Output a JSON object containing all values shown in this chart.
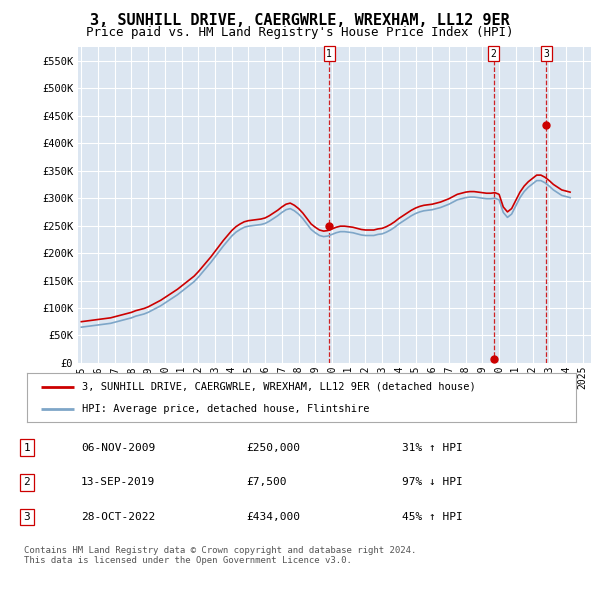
{
  "title": "3, SUNHILL DRIVE, CAERGWRLE, WREXHAM, LL12 9ER",
  "subtitle": "Price paid vs. HM Land Registry's House Price Index (HPI)",
  "title_fontsize": 11,
  "subtitle_fontsize": 9,
  "background_color": "#ffffff",
  "plot_bg_color": "#dce6f1",
  "grid_color": "#ffffff",
  "ylim": [
    0,
    575000
  ],
  "yticks": [
    0,
    50000,
    100000,
    150000,
    200000,
    250000,
    300000,
    350000,
    400000,
    450000,
    500000,
    550000
  ],
  "ytick_labels": [
    "£0",
    "£50K",
    "£100K",
    "£150K",
    "£200K",
    "£250K",
    "£300K",
    "£350K",
    "£400K",
    "£450K",
    "£500K",
    "£550K"
  ],
  "dates": [
    1995.0,
    1995.25,
    1995.5,
    1995.75,
    1996.0,
    1996.25,
    1996.5,
    1996.75,
    1997.0,
    1997.25,
    1997.5,
    1997.75,
    1998.0,
    1998.25,
    1998.5,
    1998.75,
    1999.0,
    1999.25,
    1999.5,
    1999.75,
    2000.0,
    2000.25,
    2000.5,
    2000.75,
    2001.0,
    2001.25,
    2001.5,
    2001.75,
    2002.0,
    2002.25,
    2002.5,
    2002.75,
    2003.0,
    2003.25,
    2003.5,
    2003.75,
    2004.0,
    2004.25,
    2004.5,
    2004.75,
    2005.0,
    2005.25,
    2005.5,
    2005.75,
    2006.0,
    2006.25,
    2006.5,
    2006.75,
    2007.0,
    2007.25,
    2007.5,
    2007.75,
    2008.0,
    2008.25,
    2008.5,
    2008.75,
    2009.0,
    2009.25,
    2009.5,
    2009.75,
    2010.0,
    2010.25,
    2010.5,
    2010.75,
    2011.0,
    2011.25,
    2011.5,
    2011.75,
    2012.0,
    2012.25,
    2012.5,
    2012.75,
    2013.0,
    2013.25,
    2013.5,
    2013.75,
    2014.0,
    2014.25,
    2014.5,
    2014.75,
    2015.0,
    2015.25,
    2015.5,
    2015.75,
    2016.0,
    2016.25,
    2016.5,
    2016.75,
    2017.0,
    2017.25,
    2017.5,
    2017.75,
    2018.0,
    2018.25,
    2018.5,
    2018.75,
    2019.0,
    2019.25,
    2019.5,
    2019.75,
    2020.0,
    2020.25,
    2020.5,
    2020.75,
    2021.0,
    2021.25,
    2021.5,
    2021.75,
    2022.0,
    2022.25,
    2022.5,
    2022.75,
    2023.0,
    2023.25,
    2023.5,
    2023.75,
    2024.0,
    2024.25
  ],
  "hpi_values": [
    65000,
    66000,
    67000,
    68000,
    69000,
    70000,
    71000,
    72000,
    74000,
    76000,
    78000,
    80000,
    82000,
    85000,
    87000,
    89000,
    92000,
    96000,
    100000,
    104000,
    109000,
    114000,
    119000,
    124000,
    130000,
    136000,
    142000,
    148000,
    156000,
    165000,
    174000,
    183000,
    193000,
    203000,
    213000,
    222000,
    231000,
    238000,
    243000,
    247000,
    249000,
    250000,
    251000,
    252000,
    254000,
    258000,
    263000,
    268000,
    274000,
    279000,
    281000,
    277000,
    271000,
    263000,
    253000,
    243000,
    237000,
    232000,
    230000,
    231000,
    234000,
    237000,
    239000,
    239000,
    238000,
    237000,
    235000,
    233000,
    232000,
    232000,
    232000,
    234000,
    235000,
    238000,
    242000,
    247000,
    253000,
    258000,
    263000,
    268000,
    272000,
    275000,
    277000,
    278000,
    279000,
    281000,
    283000,
    286000,
    289000,
    293000,
    297000,
    299000,
    301000,
    302000,
    302000,
    301000,
    300000,
    299000,
    299000,
    300000,
    297000,
    274000,
    265000,
    271000,
    286000,
    301000,
    312000,
    320000,
    326000,
    332000,
    332000,
    328000,
    322000,
    315000,
    310000,
    305000,
    303000,
    301000,
    299000,
    298000
  ],
  "red_values": [
    75000,
    76000,
    77000,
    78000,
    79000,
    80000,
    81000,
    82000,
    84000,
    86000,
    88000,
    90000,
    92000,
    95000,
    97000,
    99000,
    102000,
    106000,
    110000,
    114000,
    119000,
    124000,
    129000,
    134000,
    140000,
    146000,
    152000,
    158000,
    166000,
    175000,
    184000,
    193000,
    203000,
    213000,
    223000,
    232000,
    241000,
    248000,
    253000,
    257000,
    259000,
    260000,
    261000,
    262000,
    264000,
    268000,
    273000,
    278000,
    284000,
    289000,
    291000,
    287000,
    281000,
    273000,
    263000,
    253000,
    247000,
    242000,
    240000,
    241000,
    244000,
    247000,
    249000,
    249000,
    248000,
    247000,
    245000,
    243000,
    242000,
    242000,
    242000,
    244000,
    245000,
    248000,
    252000,
    257000,
    263000,
    268000,
    273000,
    278000,
    282000,
    285000,
    287000,
    288000,
    289000,
    291000,
    293000,
    296000,
    299000,
    303000,
    307000,
    309000,
    311000,
    312000,
    312000,
    311000,
    310000,
    309000,
    309000,
    310000,
    307000,
    284000,
    275000,
    281000,
    296000,
    311000,
    322000,
    330000,
    336000,
    342000,
    342000,
    338000,
    332000,
    325000,
    320000,
    315000,
    313000,
    311000,
    309000,
    308000
  ],
  "sale_events": [
    {
      "date": 2009.83,
      "price": 250000,
      "label": "1",
      "color": "#cc0000"
    },
    {
      "date": 2019.67,
      "price": 7500,
      "label": "2",
      "color": "#cc0000"
    },
    {
      "date": 2022.83,
      "price": 434000,
      "label": "3",
      "color": "#cc0000"
    }
  ],
  "vline_dates": [
    2009.83,
    2019.67,
    2022.83
  ],
  "vline_color": "#cc0000",
  "red_line_color": "#cc0000",
  "hpi_line_color": "#7ea6c8",
  "legend_entries": [
    "3, SUNHILL DRIVE, CAERGWRLE, WREXHAM, LL12 9ER (detached house)",
    "HPI: Average price, detached house, Flintshire"
  ],
  "table_data": [
    {
      "num": "1",
      "date": "06-NOV-2009",
      "price": "£250,000",
      "change": "31% ↑ HPI"
    },
    {
      "num": "2",
      "date": "13-SEP-2019",
      "price": "£7,500",
      "change": "97% ↓ HPI"
    },
    {
      "num": "3",
      "date": "28-OCT-2022",
      "price": "£434,000",
      "change": "45% ↑ HPI"
    }
  ],
  "footer_text": "Contains HM Land Registry data © Crown copyright and database right 2024.\nThis data is licensed under the Open Government Licence v3.0.",
  "xtick_years": [
    1995,
    1996,
    1997,
    1998,
    1999,
    2000,
    2001,
    2002,
    2003,
    2004,
    2005,
    2006,
    2007,
    2008,
    2009,
    2010,
    2011,
    2012,
    2013,
    2014,
    2015,
    2016,
    2017,
    2018,
    2019,
    2020,
    2021,
    2022,
    2023,
    2024,
    2025
  ]
}
